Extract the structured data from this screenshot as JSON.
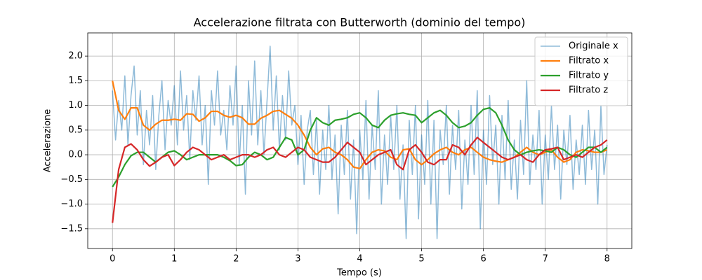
{
  "chart_data": {
    "type": "line",
    "title": "Accelerazione filtrata con Butterworth (dominio del tempo)",
    "x_label": "Tempo (s)",
    "y_label": "Accelerazione",
    "xlim": [
      -0.4,
      8.4
    ],
    "ylim": [
      -1.9,
      2.47
    ],
    "xticks": [
      0,
      1,
      2,
      3,
      4,
      5,
      6,
      7,
      8
    ],
    "yticks": [
      {
        "value": -1.5,
        "label": "−1.5"
      },
      {
        "value": -1.0,
        "label": "−1.0"
      },
      {
        "value": -0.5,
        "label": "−0.5"
      },
      {
        "value": 0,
        "label": "0.0"
      },
      0.5,
      {
        "value": 1.0,
        "label": "1.0"
      },
      1.5,
      {
        "value": 2.0,
        "label": "2.0"
      }
    ],
    "grid": true,
    "legend": "upper right",
    "series": [
      {
        "name": "Originale x",
        "color": "#1f77b4",
        "alpha": 0.5,
        "x": [
          0,
          0.05,
          0.1,
          0.15,
          0.2,
          0.25,
          0.3,
          0.35,
          0.4,
          0.45,
          0.5,
          0.55,
          0.6,
          0.65,
          0.7,
          0.75,
          0.8,
          0.85,
          0.9,
          0.95,
          1,
          1.05,
          1.1,
          1.15,
          1.2,
          1.25,
          1.3,
          1.35,
          1.4,
          1.45,
          1.5,
          1.55,
          1.6,
          1.65,
          1.7,
          1.75,
          1.8,
          1.85,
          1.9,
          1.95,
          2,
          2.05,
          2.1,
          2.15,
          2.2,
          2.25,
          2.3,
          2.35,
          2.4,
          2.45,
          2.5,
          2.55,
          2.6,
          2.65,
          2.7,
          2.75,
          2.8,
          2.85,
          2.9,
          2.95,
          3,
          3.05,
          3.1,
          3.15,
          3.2,
          3.25,
          3.3,
          3.35,
          3.4,
          3.45,
          3.5,
          3.55,
          3.6,
          3.65,
          3.7,
          3.75,
          3.8,
          3.85,
          3.9,
          3.95,
          4,
          4.05,
          4.1,
          4.15,
          4.2,
          4.25,
          4.3,
          4.35,
          4.4,
          4.45,
          4.5,
          4.55,
          4.6,
          4.65,
          4.7,
          4.75,
          4.8,
          4.85,
          4.9,
          4.95,
          5,
          5.05,
          5.1,
          5.15,
          5.2,
          5.25,
          5.3,
          5.35,
          5.4,
          5.45,
          5.5,
          5.55,
          5.6,
          5.65,
          5.7,
          5.75,
          5.8,
          5.85,
          5.9,
          5.95,
          6,
          6.05,
          6.1,
          6.15,
          6.2,
          6.25,
          6.3,
          6.35,
          6.4,
          6.45,
          6.5,
          6.55,
          6.6,
          6.65,
          6.7,
          6.75,
          6.8,
          6.85,
          6.9,
          6.95,
          7,
          7.05,
          7.1,
          7.15,
          7.2,
          7.25,
          7.3,
          7.35,
          7.4,
          7.45,
          7.5,
          7.55,
          7.6,
          7.65,
          7.7,
          7.75,
          7.8,
          7.85,
          7.9,
          7.95,
          8
        ],
        "values": [
          1.3,
          0.3,
          1.1,
          0.5,
          1.6,
          0.2,
          1.2,
          1.8,
          0.4,
          1.3,
          -0.2,
          0.9,
          0.2,
          1.2,
          -0.3,
          0.8,
          1.5,
          0.1,
          1.1,
          0.6,
          1.4,
          0.2,
          1.7,
          0.5,
          1.2,
          -0.1,
          1.3,
          0.7,
          1.6,
          0.2,
          1.0,
          -0.6,
          1.3,
          0.6,
          1.7,
          0.4,
          0.9,
          0.1,
          1.4,
          0.6,
          1.8,
          -0.2,
          1.0,
          -0.8,
          1.5,
          0.4,
          1.9,
          0.2,
          1.3,
          0.0,
          1.1,
          2.2,
          0.5,
          1.6,
          0.1,
          1.2,
          0.3,
          1.7,
          0.6,
          1.0,
          -0.2,
          0.8,
          -0.6,
          0.5,
          0.9,
          -0.4,
          0.7,
          -0.8,
          0.5,
          -0.3,
          1.0,
          -0.5,
          0.4,
          -1.2,
          0.6,
          -0.4,
          0.9,
          -0.9,
          0.3,
          -1.6,
          0.5,
          -0.5,
          1.1,
          -0.9,
          0.6,
          -0.3,
          1.3,
          -1.0,
          0.4,
          -0.6,
          0.8,
          -0.3,
          1.0,
          -0.9,
          0.2,
          -1.7,
          0.7,
          -0.4,
          1.0,
          -1.3,
          0.4,
          -0.6,
          1.1,
          -1.0,
          0.7,
          -1.7,
          0.5,
          -0.2,
          1.0,
          -0.8,
          0.6,
          -0.3,
          0.9,
          -1.1,
          0.3,
          -0.6,
          1.0,
          -0.4,
          1.3,
          -1.5,
          0.5,
          -0.6,
          1.2,
          -0.2,
          0.6,
          -1.0,
          0.8,
          -0.5,
          1.1,
          -0.7,
          0.3,
          -0.9,
          0.7,
          -0.4,
          1.5,
          -0.6,
          0.4,
          -0.3,
          0.9,
          -1.0,
          0.4,
          -0.5,
          1.0,
          -0.3,
          0.6,
          -0.9,
          0.5,
          -0.2,
          0.8,
          -0.7,
          0.3,
          -0.4,
          0.6,
          -0.6,
          0.9,
          -0.3,
          0.5,
          -1.0,
          1.0,
          -0.4,
          0.2
        ]
      },
      {
        "name": "Filtrato x",
        "color": "#ff7f0e",
        "x": [
          0,
          0.1,
          0.2,
          0.3,
          0.4,
          0.5,
          0.6,
          0.7,
          0.8,
          0.9,
          1,
          1.1,
          1.2,
          1.3,
          1.4,
          1.5,
          1.6,
          1.7,
          1.8,
          1.9,
          2,
          2.1,
          2.2,
          2.3,
          2.4,
          2.5,
          2.6,
          2.7,
          2.8,
          2.9,
          3,
          3.1,
          3.2,
          3.3,
          3.4,
          3.5,
          3.6,
          3.7,
          3.8,
          3.9,
          4,
          4.1,
          4.2,
          4.3,
          4.4,
          4.5,
          4.6,
          4.7,
          4.8,
          4.9,
          5,
          5.1,
          5.2,
          5.3,
          5.4,
          5.5,
          5.6,
          5.7,
          5.8,
          5.9,
          6,
          6.1,
          6.2,
          6.3,
          6.4,
          6.5,
          6.6,
          6.7,
          6.8,
          6.9,
          7,
          7.1,
          7.2,
          7.3,
          7.4,
          7.5,
          7.6,
          7.7,
          7.8,
          7.9,
          8
        ],
        "values": [
          1.5,
          0.9,
          0.72,
          0.95,
          0.95,
          0.6,
          0.5,
          0.62,
          0.7,
          0.7,
          0.72,
          0.7,
          0.83,
          0.82,
          0.68,
          0.75,
          0.88,
          0.88,
          0.8,
          0.76,
          0.8,
          0.75,
          0.62,
          0.62,
          0.74,
          0.8,
          0.88,
          0.9,
          0.82,
          0.74,
          0.6,
          0.4,
          0.15,
          0.0,
          0.12,
          0.15,
          0.05,
          0.0,
          -0.1,
          -0.25,
          -0.28,
          -0.1,
          0.05,
          0.1,
          0.08,
          -0.05,
          -0.1,
          0.1,
          0.12,
          -0.1,
          -0.2,
          -0.1,
          0.02,
          0.1,
          0.15,
          0.05,
          0.0,
          0.1,
          0.15,
          0.05,
          -0.05,
          -0.1,
          -0.13,
          -0.15,
          -0.1,
          -0.05,
          0.05,
          0.15,
          0.05,
          0.0,
          0.05,
          0.1,
          -0.05,
          -0.15,
          -0.1,
          0.05,
          0.1,
          0.08,
          0.05,
          0.05,
          0.1
        ]
      },
      {
        "name": "Filtrato y",
        "color": "#2ca02c",
        "x": [
          0,
          0.1,
          0.2,
          0.3,
          0.4,
          0.5,
          0.6,
          0.7,
          0.8,
          0.9,
          1,
          1.1,
          1.2,
          1.3,
          1.4,
          1.5,
          1.6,
          1.7,
          1.8,
          1.9,
          2,
          2.1,
          2.2,
          2.3,
          2.4,
          2.5,
          2.6,
          2.7,
          2.8,
          2.9,
          3,
          3.1,
          3.2,
          3.3,
          3.4,
          3.5,
          3.6,
          3.7,
          3.8,
          3.9,
          4,
          4.1,
          4.2,
          4.3,
          4.4,
          4.5,
          4.6,
          4.7,
          4.8,
          4.9,
          5,
          5.1,
          5.2,
          5.3,
          5.4,
          5.5,
          5.6,
          5.7,
          5.8,
          5.9,
          6,
          6.1,
          6.2,
          6.3,
          6.4,
          6.5,
          6.6,
          6.7,
          6.8,
          6.9,
          7,
          7.1,
          7.2,
          7.3,
          7.4,
          7.5,
          7.6,
          7.7,
          7.8,
          7.9,
          8
        ],
        "values": [
          -0.65,
          -0.45,
          -0.2,
          -0.02,
          0.05,
          0.05,
          -0.05,
          -0.15,
          -0.05,
          0.05,
          0.08,
          0.0,
          -0.1,
          -0.05,
          0.0,
          0.0,
          0.0,
          0.0,
          -0.05,
          -0.12,
          -0.22,
          -0.2,
          -0.05,
          0.05,
          0.0,
          -0.1,
          -0.05,
          0.15,
          0.35,
          0.3,
          0.0,
          0.1,
          0.5,
          0.75,
          0.65,
          0.6,
          0.7,
          0.72,
          0.75,
          0.82,
          0.85,
          0.75,
          0.6,
          0.55,
          0.7,
          0.8,
          0.83,
          0.85,
          0.82,
          0.8,
          0.65,
          0.75,
          0.85,
          0.9,
          0.8,
          0.65,
          0.55,
          0.58,
          0.65,
          0.8,
          0.92,
          0.95,
          0.85,
          0.6,
          0.3,
          0.1,
          0.0,
          0.05,
          0.08,
          0.1,
          0.08,
          0.05,
          0.15,
          0.1,
          0.0,
          -0.05,
          0.05,
          0.15,
          0.15,
          0.05,
          0.15
        ]
      },
      {
        "name": "Filtrato z",
        "color": "#d62728",
        "x": [
          0,
          0.1,
          0.2,
          0.3,
          0.4,
          0.5,
          0.6,
          0.7,
          0.8,
          0.9,
          1,
          1.1,
          1.2,
          1.3,
          1.4,
          1.5,
          1.6,
          1.7,
          1.8,
          1.9,
          2,
          2.1,
          2.2,
          2.3,
          2.4,
          2.5,
          2.6,
          2.7,
          2.8,
          2.9,
          3,
          3.1,
          3.2,
          3.3,
          3.4,
          3.5,
          3.6,
          3.7,
          3.8,
          3.9,
          4,
          4.1,
          4.2,
          4.3,
          4.4,
          4.5,
          4.6,
          4.7,
          4.8,
          4.9,
          5,
          5.1,
          5.2,
          5.3,
          5.4,
          5.5,
          5.6,
          5.7,
          5.8,
          5.9,
          6,
          6.1,
          6.2,
          6.3,
          6.4,
          6.5,
          6.6,
          6.7,
          6.8,
          6.9,
          7,
          7.1,
          7.2,
          7.3,
          7.4,
          7.5,
          7.6,
          7.7,
          7.8,
          7.9,
          8
        ],
        "values": [
          -1.38,
          -0.3,
          0.15,
          0.22,
          0.1,
          -0.1,
          -0.23,
          -0.15,
          -0.05,
          0.0,
          -0.22,
          -0.1,
          0.05,
          0.15,
          0.1,
          0.0,
          -0.1,
          -0.05,
          0.0,
          -0.1,
          -0.05,
          0.0,
          0.0,
          -0.05,
          0.0,
          0.1,
          0.15,
          0.0,
          -0.05,
          0.05,
          0.15,
          0.1,
          -0.05,
          -0.1,
          -0.15,
          -0.15,
          -0.05,
          0.1,
          0.25,
          0.15,
          0.05,
          -0.2,
          -0.1,
          0.0,
          0.05,
          0.1,
          -0.2,
          -0.3,
          0.1,
          0.2,
          0.05,
          -0.15,
          -0.2,
          -0.1,
          -0.1,
          0.2,
          0.15,
          0.0,
          0.2,
          0.35,
          0.25,
          0.15,
          0.05,
          -0.05,
          -0.1,
          -0.05,
          0.0,
          -0.1,
          -0.15,
          0.0,
          0.1,
          0.12,
          0.15,
          -0.1,
          -0.05,
          0.0,
          -0.05,
          0.05,
          0.15,
          0.2,
          0.3
        ]
      }
    ]
  }
}
